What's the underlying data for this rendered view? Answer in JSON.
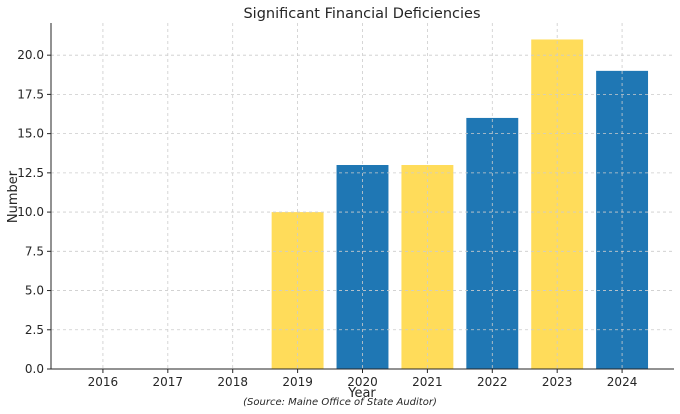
{
  "chart_data": {
    "type": "bar",
    "title": "Significant Financial Deficiencies",
    "xlabel": "Year",
    "ylabel": "Number",
    "categories": [
      "2016",
      "2017",
      "2018",
      "2019",
      "2020",
      "2021",
      "2022",
      "2023",
      "2024"
    ],
    "values": [
      0,
      0,
      0,
      10,
      13,
      13,
      16,
      21,
      19
    ],
    "bar_colors": [
      "#ffdc5a",
      "#1f77b4",
      "#ffdc5a",
      "#ffdc5a",
      "#1f77b4",
      "#ffdc5a",
      "#1f77b4",
      "#ffdc5a",
      "#1f77b4"
    ],
    "ylim": [
      0,
      22.05
    ],
    "yticks": [
      0,
      2.5,
      5,
      7.5,
      10,
      12.5,
      15,
      17.5,
      20
    ],
    "ytick_labels": [
      "0.0",
      "2.5",
      "5.0",
      "7.5",
      "10.0",
      "12.5",
      "15.0",
      "17.5",
      "20.0"
    ],
    "grid": true,
    "grid_color": "#cccccc",
    "axis_color": "#262626",
    "source_note": "(Source: Maine Office of State Auditor)"
  }
}
